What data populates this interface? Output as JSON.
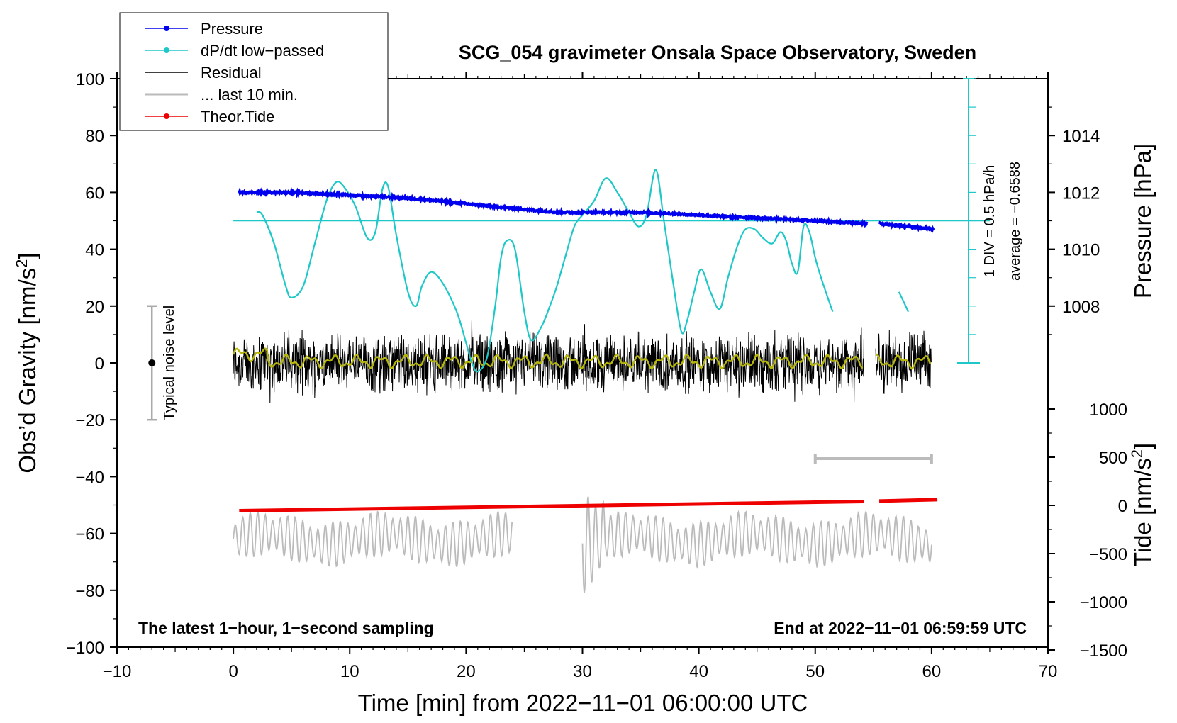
{
  "chart_data": {
    "type": "line",
    "title": "SCG_054 gravimeter Onsala Space Observatory, Sweden",
    "xlabel": "Time [min] from 2022−11−01 06:00:00 UTC",
    "ylabel_left_main": "Obs’d Gravity [nm/s",
    "ylabel_left_sup": "2",
    "ylabel_left_end": "]",
    "ylabel_right_pressure": "Pressure [hPa]",
    "ylabel_right_tide_main": "Tide [nm/s",
    "ylabel_right_tide_sup": "2",
    "ylabel_right_tide_end": "]",
    "xlim": [
      -10,
      70
    ],
    "ylim": [
      -100,
      100
    ],
    "x_ticks": [
      -10,
      0,
      10,
      20,
      30,
      40,
      50,
      60,
      70
    ],
    "x_tick_labels": [
      "−10",
      "0",
      "10",
      "20",
      "30",
      "40",
      "50",
      "60",
      "70"
    ],
    "y_ticks": [
      -100,
      -80,
      -60,
      -40,
      -20,
      0,
      20,
      40,
      60,
      80,
      100
    ],
    "y_tick_labels": [
      "−100",
      "−80",
      "−60",
      "−40",
      "−20",
      "0",
      "20",
      "40",
      "60",
      "80",
      "100"
    ],
    "pressure_axis": {
      "ticks": [
        1008,
        1010,
        1012,
        1014
      ],
      "tick_labels": [
        "1008",
        "1010",
        "1012",
        "1014"
      ]
    },
    "tide_axis": {
      "ticks": [
        -1500,
        -1000,
        -500,
        0,
        500,
        1000
      ],
      "tick_labels": [
        "−1500",
        "−1000",
        "−500",
        "0",
        "500",
        "1000"
      ]
    },
    "dpdt_scale_label": "1 DIV = 0.5 hPa/h",
    "dpdt_average_label": "average = −0.6588",
    "noise_label": "Typical noise level",
    "bottom_left_note": "The latest 1−hour, 1−second sampling",
    "bottom_right_note": "End at 2022−11−01 06:59:59 UTC",
    "legend": [
      {
        "label": "Pressure",
        "color": "#0000ee",
        "marker": true
      },
      {
        "label": "dP/dt low−passed",
        "color": "#1ec8c8",
        "marker": true
      },
      {
        "label": "Residual",
        "color": "#000000",
        "marker": false
      },
      {
        "label": "... last 10 min.",
        "color": "#bbbbbb",
        "marker": false
      },
      {
        "label": "Theor.Tide",
        "color": "#ee0000",
        "marker": true
      }
    ],
    "series": [
      {
        "name": "Pressure",
        "axis": "pressure_hPa",
        "color": "#0000ee",
        "x": [
          0.5,
          5,
          10,
          15,
          20,
          25,
          28,
          30,
          35,
          40,
          45,
          50,
          54.5,
          55.5,
          58,
          60.2
        ],
        "y": [
          1012.0,
          1012.0,
          1011.9,
          1011.8,
          1011.6,
          1011.4,
          1011.3,
          1011.3,
          1011.3,
          1011.2,
          1011.1,
          1011.0,
          1010.9,
          1010.9,
          1010.8,
          1010.7
        ],
        "gaps_after": [
          54.5
        ]
      },
      {
        "name": "dP/dt low-passed",
        "axis": "left_nm_s2_scaled",
        "color": "#1ec8c8",
        "baseline": 50,
        "x": [
          2,
          2.5,
          3.5,
          4.5,
          5,
          6,
          7,
          8,
          8.8,
          9.5,
          10.5,
          11.5,
          12.2,
          12.8,
          13.3,
          14,
          15,
          15.7,
          16.2,
          17,
          18,
          19.2,
          20,
          20.5,
          21,
          21.8,
          22.5,
          23,
          23.5,
          24.2,
          25,
          25.6,
          26.5,
          27.2,
          27.8,
          28.5,
          29.3,
          30,
          31,
          32,
          33,
          34,
          34.8,
          35.5,
          36.3,
          37,
          37.8,
          38.5,
          39,
          39.6,
          40.2,
          41,
          41.8,
          42.5,
          43.3,
          44,
          44.8,
          45.5,
          46.3,
          47,
          47.5,
          48,
          48.5,
          49,
          49.5,
          50,
          50.5,
          51.5
        ],
        "y": [
          53,
          52,
          42,
          27,
          23,
          27,
          42,
          57,
          63.5,
          62,
          55,
          44,
          46,
          61,
          62,
          45,
          25,
          20,
          27,
          32,
          28,
          18,
          7,
          0,
          -3,
          2,
          20,
          37,
          43,
          40,
          18,
          8,
          13,
          20,
          27,
          37,
          48,
          52,
          57,
          65,
          60,
          53,
          48,
          52,
          68,
          50,
          28,
          11,
          15,
          25,
          33,
          25,
          19,
          30,
          41,
          47,
          47,
          44,
          42,
          46,
          43,
          35,
          32,
          48,
          46,
          37,
          30,
          18
        ],
        "gaps_after": [
          51.5
        ],
        "x2": [
          57.2,
          58
        ],
        "y2": [
          25,
          18
        ]
      },
      {
        "name": "Residual",
        "axis": "left_nm_s2",
        "color": "#000000",
        "x_range": [
          0,
          60
        ],
        "amplitude": 12,
        "gaps": [
          [
            54.2,
            55.2
          ]
        ]
      },
      {
        "name": "Residual smoothed",
        "axis": "left_nm_s2",
        "color": "#b5b50a",
        "x_range": [
          0,
          60
        ],
        "mean": 0.5
      },
      {
        "name": "... last 10 min.",
        "axis": "left_nm_s2",
        "color": "#bbbbbb",
        "center": -62,
        "segments": [
          [
            0,
            24
          ],
          [
            30,
            60
          ]
        ],
        "amplitude": 8
      },
      {
        "name": "Theor.Tide",
        "axis": "tide_nm_s2",
        "color": "#ee0000",
        "x": [
          0.5,
          10,
          20,
          30,
          40,
          50,
          54.2,
          55.5,
          60.5
        ],
        "y": [
          -55,
          -40,
          -25,
          -5,
          15,
          30,
          40,
          45,
          60
        ],
        "gaps_after": [
          54.2
        ]
      }
    ],
    "last10_marker_x": [
      50,
      60
    ],
    "noise_bar_x": -7,
    "noise_bar_y": [
      -20,
      20
    ]
  }
}
